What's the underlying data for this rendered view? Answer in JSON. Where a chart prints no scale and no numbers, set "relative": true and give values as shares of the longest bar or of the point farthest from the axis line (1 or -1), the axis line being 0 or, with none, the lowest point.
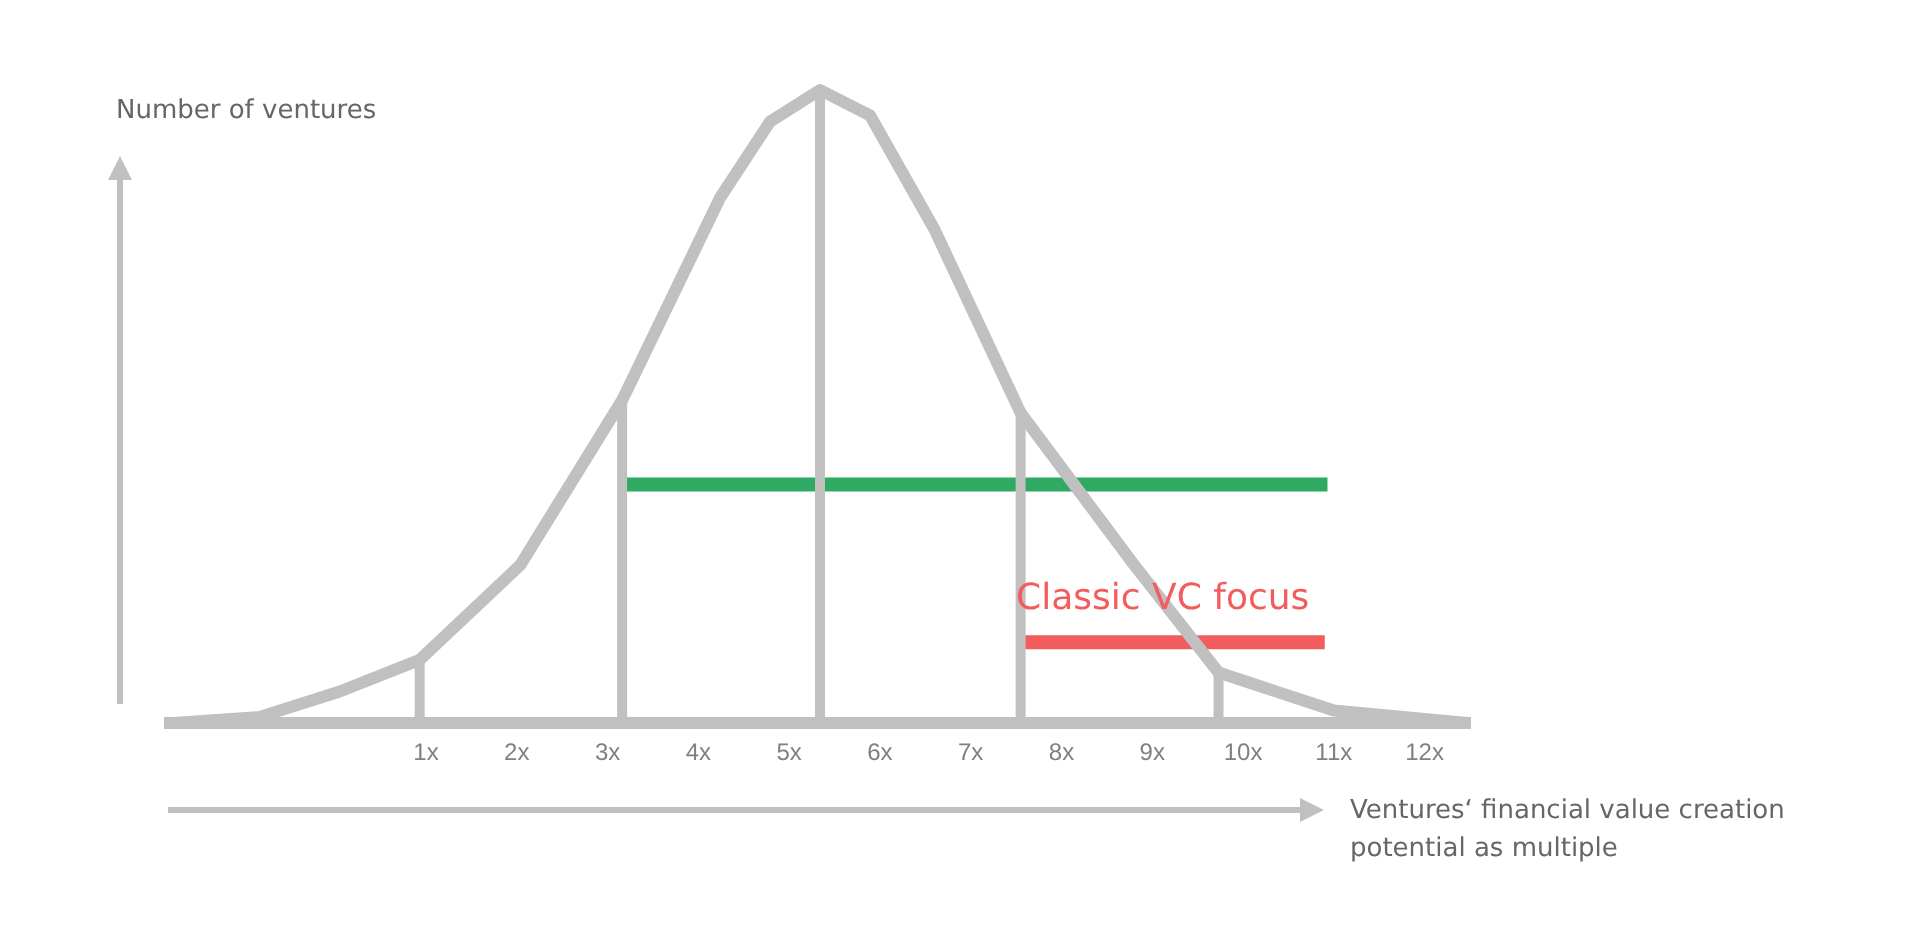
{
  "chart_data": {
    "type": "line",
    "relative": true,
    "ylabel": "Number of ventures",
    "xlabel": "Ventures‘ financial value creation potential as multiple",
    "xlim": [
      -1.82,
      12.5
    ],
    "xticks": [
      {
        "value": 1,
        "label": "1x"
      },
      {
        "value": 2,
        "label": "2x"
      },
      {
        "value": 3,
        "label": "3x"
      },
      {
        "value": 4,
        "label": "4x"
      },
      {
        "value": 5,
        "label": "5x"
      },
      {
        "value": 6,
        "label": "6x"
      },
      {
        "value": 7,
        "label": "7x"
      },
      {
        "value": 8,
        "label": "8x"
      },
      {
        "value": 9,
        "label": "9x"
      },
      {
        "value": 10,
        "label": "10x"
      },
      {
        "value": 11,
        "label": "11x"
      },
      {
        "value": 12,
        "label": "12x"
      }
    ],
    "tick_labels": "x",
    "legend": false,
    "grid": false,
    "marker": "none",
    "series": [
      {
        "color": "#c0c0c0",
        "x": [
          -1.82,
          -0.83,
          0.05,
          0.93,
          2.04,
          3.16,
          4.24,
          4.79,
          5.34,
          5.89,
          6.6,
          7.55,
          8.8,
          9.73,
          11.0,
          12.5
        ],
        "values": [
          0,
          0.01,
          0.05,
          0.1,
          0.25,
          0.51,
          0.83,
          0.95,
          1,
          0.96,
          0.78,
          0.49,
          0.25,
          0.08,
          0.02,
          0
        ]
      },
      {
        "color": "#c0c0c0",
        "x": [
          0.93,
          0.93
        ],
        "values": [
          0,
          0.1
        ]
      },
      {
        "color": "#c0c0c0",
        "x": [
          3.16,
          3.16
        ],
        "values": [
          0,
          0.51
        ]
      },
      {
        "color": "#c0c0c0",
        "x": [
          5.34,
          5.34
        ],
        "values": [
          0,
          1
        ]
      },
      {
        "color": "#c0c0c0",
        "x": [
          7.55,
          7.55
        ],
        "values": [
          0,
          0.49
        ]
      },
      {
        "color": "#c0c0c0",
        "x": [
          9.73,
          9.73
        ],
        "values": [
          0,
          0.08
        ]
      },
      {
        "color": "#2eaa62",
        "x": [
          3.16,
          10.93
        ],
        "values": [
          0.377,
          0.377
        ]
      },
      {
        "name": "Classic VC focus",
        "color": "#f25c5c",
        "x": [
          7.5,
          10.9
        ],
        "values": [
          0.128,
          0.128
        ]
      }
    ]
  }
}
